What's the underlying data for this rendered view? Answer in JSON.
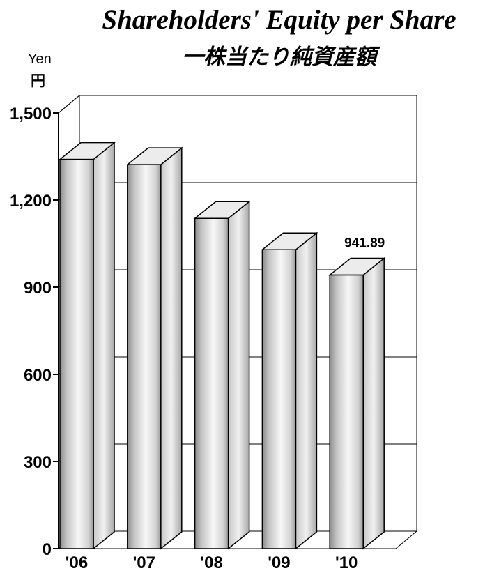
{
  "chart_data": {
    "type": "bar",
    "title": "Shareholders' Equity per Share",
    "subtitle": "一株当たり純資産額",
    "ylabel": "Yen",
    "ylabel_ja": "円",
    "categories": [
      "'06",
      "'07",
      "'08",
      "'09",
      "'10"
    ],
    "values": [
      1340,
      1322,
      1137,
      1029,
      941.89
    ],
    "data_labels": [
      "",
      "",
      "",
      "",
      "941.89"
    ],
    "yticks": [
      "0",
      "300",
      "600",
      "900",
      "1,200",
      "1,500"
    ],
    "ytick_values": [
      0,
      300,
      600,
      900,
      1200,
      1500
    ],
    "ylim": [
      0,
      1500
    ],
    "grid": true,
    "style": "3d"
  }
}
